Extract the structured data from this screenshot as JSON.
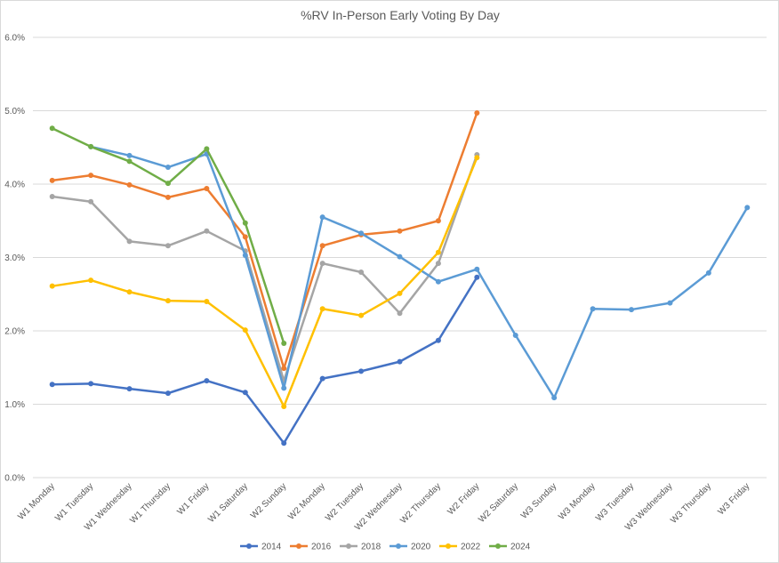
{
  "chart_data": {
    "type": "line",
    "title": "%RV In-Person Early Voting By Day",
    "categories": [
      "W1 Monday",
      "W1 Tuesday",
      "W1 Wednesday",
      "W1 Thursday",
      "W1 Friday",
      "W1 Saturday",
      "W2 Sunday",
      "W2 Monday",
      "W2 Tuesday",
      "W2 Wednesday",
      "W2 Thursday",
      "W2 Friday",
      "W2 Saturday",
      "W3 Sunday",
      "W3 Monday",
      "W3 Tuesday",
      "W3 Wednesday",
      "W3 Thursday",
      "W3 Friday"
    ],
    "series": [
      {
        "name": "2014",
        "color": "#4472c4",
        "values": [
          1.27,
          1.28,
          1.21,
          1.15,
          1.32,
          1.16,
          0.47,
          1.35,
          1.45,
          1.58,
          1.87,
          2.73,
          null,
          null,
          null,
          null,
          null,
          null,
          null
        ]
      },
      {
        "name": "2016",
        "color": "#ed7d31",
        "values": [
          4.05,
          4.12,
          3.99,
          3.82,
          3.94,
          3.28,
          1.49,
          3.16,
          3.31,
          3.36,
          3.5,
          4.97,
          null,
          null,
          null,
          null,
          null,
          null,
          null
        ]
      },
      {
        "name": "2018",
        "color": "#a5a5a5",
        "values": [
          3.83,
          3.76,
          3.22,
          3.16,
          3.36,
          3.09,
          1.32,
          2.92,
          2.8,
          2.24,
          2.92,
          4.4,
          null,
          null,
          null,
          null,
          null,
          null,
          null
        ]
      },
      {
        "name": "2020",
        "color": "#5b9bd5",
        "values": [
          null,
          4.51,
          4.39,
          4.23,
          4.41,
          3.03,
          1.22,
          3.55,
          3.33,
          3.01,
          2.67,
          2.84,
          1.94,
          1.09,
          2.3,
          2.29,
          2.38,
          2.79,
          3.68
        ]
      },
      {
        "name": "2022",
        "color": "#ffc000",
        "values": [
          2.61,
          2.69,
          2.53,
          2.41,
          2.4,
          2.01,
          0.97,
          2.3,
          2.21,
          2.51,
          3.07,
          4.36,
          null,
          null,
          null,
          null,
          null,
          null,
          null
        ]
      },
      {
        "name": "2024",
        "color": "#70ad47",
        "values": [
          4.76,
          4.51,
          4.31,
          4.01,
          4.48,
          3.47,
          1.83,
          null,
          null,
          null,
          null,
          null,
          null,
          null,
          null,
          null,
          null,
          null,
          null
        ]
      }
    ],
    "ylim": [
      0,
      6
    ],
    "yticks": [
      {
        "value": 0,
        "label": "0.0%"
      },
      {
        "value": 1,
        "label": "1.0%"
      },
      {
        "value": 2,
        "label": "2.0%"
      },
      {
        "value": 3,
        "label": "3.0%"
      },
      {
        "value": 4,
        "label": "4.0%"
      },
      {
        "value": 5,
        "label": "5.0%"
      },
      {
        "value": 6,
        "label": "6.0%"
      }
    ],
    "grid": true,
    "legend": "bottom"
  }
}
